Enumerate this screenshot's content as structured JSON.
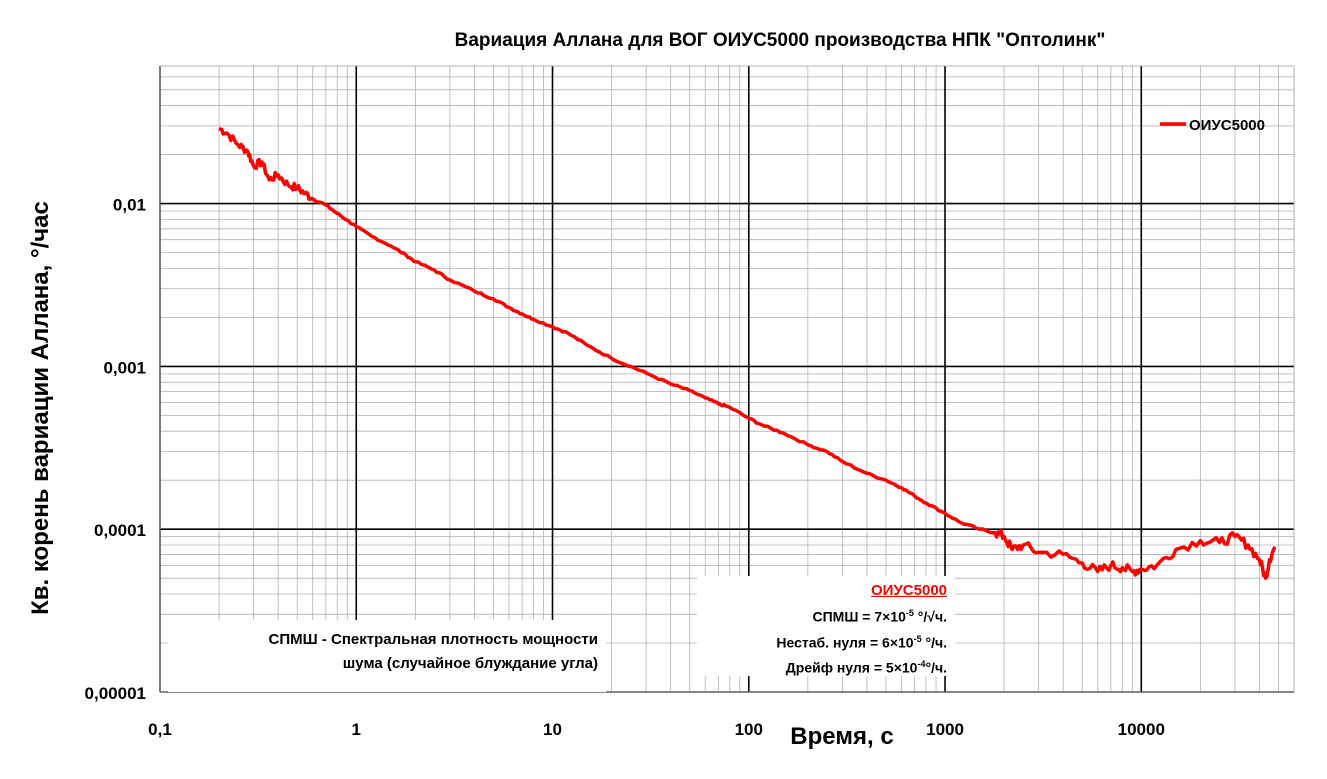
{
  "chart_data": {
    "type": "line",
    "title": "Вариация Аллана для ВОГ ОИУС5000 производства НПК \"Оптолинк\"",
    "xlabel": "Время, с",
    "ylabel": "Кв. корень вариации Аллана, °/час",
    "x_scale": "log",
    "y_scale": "log",
    "xlim": [
      0.1,
      60000
    ],
    "ylim": [
      1e-05,
      0.07
    ],
    "x_ticks": [
      "0,1",
      "1",
      "10",
      "100",
      "1000",
      "10000"
    ],
    "y_ticks": [
      "0,01",
      "0,001",
      "0,0001",
      "0,00001"
    ],
    "grid": true,
    "legend_position": "top-right",
    "series": [
      {
        "name": "ОИУС5000",
        "color": "#ff0000",
        "points": [
          [
            0.2,
            0.029
          ],
          [
            0.22,
            0.027
          ],
          [
            0.25,
            0.023
          ],
          [
            0.28,
            0.021
          ],
          [
            0.3,
            0.017
          ],
          [
            0.33,
            0.018
          ],
          [
            0.36,
            0.014
          ],
          [
            0.4,
            0.015
          ],
          [
            0.45,
            0.013
          ],
          [
            0.5,
            0.0125
          ],
          [
            0.55,
            0.0115
          ],
          [
            0.6,
            0.0107
          ],
          [
            0.7,
            0.0098
          ],
          [
            0.8,
            0.0087
          ],
          [
            0.9,
            0.0079
          ],
          [
            1,
            0.0072
          ],
          [
            1.2,
            0.0063
          ],
          [
            1.5,
            0.0055
          ],
          [
            1.8,
            0.0048
          ],
          [
            2,
            0.0044
          ],
          [
            2.5,
            0.0039
          ],
          [
            3,
            0.0034
          ],
          [
            4,
            0.0029
          ],
          [
            5,
            0.0026
          ],
          [
            6,
            0.0023
          ],
          [
            7,
            0.0021
          ],
          [
            8,
            0.00195
          ],
          [
            10,
            0.00175
          ],
          [
            12,
            0.0016
          ],
          [
            15,
            0.00135
          ],
          [
            20,
            0.00112
          ],
          [
            25,
            0.001
          ],
          [
            30,
            0.00091
          ],
          [
            40,
            0.00078
          ],
          [
            50,
            0.00071
          ],
          [
            60,
            0.00064
          ],
          [
            70,
            0.00059
          ],
          [
            80,
            0.00056
          ],
          [
            100,
            0.00048
          ],
          [
            120,
            0.00043
          ],
          [
            150,
            0.00039
          ],
          [
            200,
            0.00033
          ],
          [
            250,
            0.0003
          ],
          [
            300,
            0.00026
          ],
          [
            400,
            0.00022
          ],
          [
            500,
            0.0002
          ],
          [
            600,
            0.00018
          ],
          [
            700,
            0.00016
          ],
          [
            800,
            0.000145
          ],
          [
            1000,
            0.000125
          ],
          [
            1200,
            0.00011
          ],
          [
            1500,
            0.0001
          ],
          [
            1800,
            9.5e-05
          ],
          [
            2000,
            9e-05
          ],
          [
            2200,
            7.5e-05
          ],
          [
            2500,
            8e-05
          ],
          [
            3000,
            7.2e-05
          ],
          [
            4000,
            7e-05
          ],
          [
            5000,
            6.2e-05
          ],
          [
            6000,
            5.5e-05
          ],
          [
            7000,
            6e-05
          ],
          [
            8000,
            5.8e-05
          ],
          [
            9000,
            5.5e-05
          ],
          [
            10000,
            5.7e-05
          ],
          [
            12000,
            6e-05
          ],
          [
            15000,
            7.5e-05
          ],
          [
            20000,
            8.5e-05
          ],
          [
            25000,
            8.3e-05
          ],
          [
            30000,
            9e-05
          ],
          [
            35000,
            8e-05
          ],
          [
            40000,
            6.5e-05
          ],
          [
            43000,
            5e-05
          ],
          [
            45000,
            6.5e-05
          ],
          [
            48000,
            7.8e-05
          ]
        ]
      }
    ]
  },
  "notes": {
    "spmsh_line1": "СПМШ - Спектральная  плотность  мощности",
    "spmsh_line2": "шума (случайное блуждание  угла)"
  },
  "specs": {
    "header": "ОИУС5000",
    "arw_label": "СПМШ = 7×10",
    "arw_exp": "-5",
    "arw_unit": " °/√ч.",
    "bias_label": "Нестаб. нуля = 6×10",
    "bias_exp": "-5",
    "bias_unit": " °/ч.",
    "drift_label": "Дрейф нуля = 5×10",
    "drift_exp": "-4",
    "drift_unit": "°/ч."
  }
}
